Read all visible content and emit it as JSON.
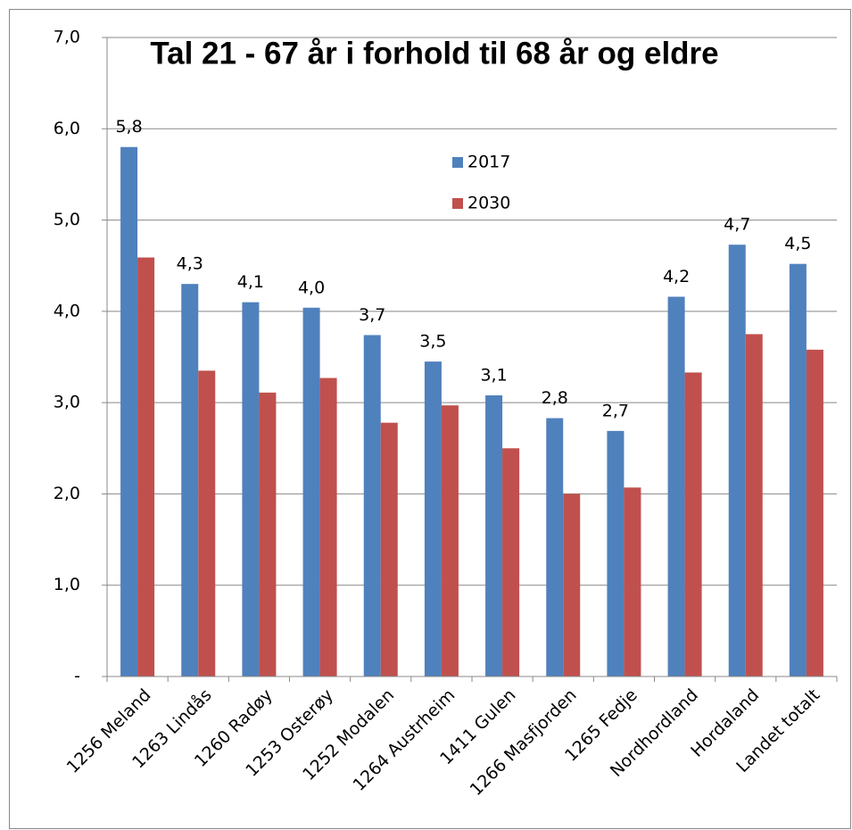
{
  "chart_data": {
    "type": "bar",
    "title": "Tal 21 - 67 år i forhold til 68 år og eldre",
    "categories": [
      "1256 Meland",
      "1263 Lindås",
      "1260 Radøy",
      "1253 Osterøy",
      "1252 Modalen",
      "1264 Austrheim",
      "1411 Gulen",
      "1266 Masfjorden",
      "1265 Fedje",
      "Nordhordland",
      "Hordaland",
      "Landet totalt"
    ],
    "series": [
      {
        "name": "2017",
        "color": "#4f81bd",
        "values": [
          5.8,
          4.3,
          4.1,
          4.04,
          3.74,
          3.45,
          3.08,
          2.83,
          2.69,
          4.16,
          4.73,
          4.52
        ],
        "value_labels": [
          "5,8",
          "4,3",
          "4,1",
          "4,0",
          "3,7",
          "3,5",
          "3,1",
          "2,8",
          "2,7",
          "4,2",
          "4,7",
          "4,5"
        ]
      },
      {
        "name": "2030",
        "color": "#c0504d",
        "values": [
          4.59,
          3.35,
          3.11,
          3.27,
          2.78,
          2.97,
          2.5,
          2.0,
          2.07,
          3.33,
          3.75,
          3.58
        ]
      }
    ],
    "ylim": [
      0,
      7
    ],
    "yticks": [
      {
        "value": 0,
        "label": "-"
      },
      {
        "value": 1,
        "label": "1,0"
      },
      {
        "value": 2,
        "label": "2,0"
      },
      {
        "value": 3,
        "label": "3,0"
      },
      {
        "value": 4,
        "label": "4,0"
      },
      {
        "value": 5,
        "label": "5,0"
      },
      {
        "value": 6,
        "label": "6,0"
      },
      {
        "value": 7,
        "label": "7,0"
      }
    ],
    "grid": true
  }
}
